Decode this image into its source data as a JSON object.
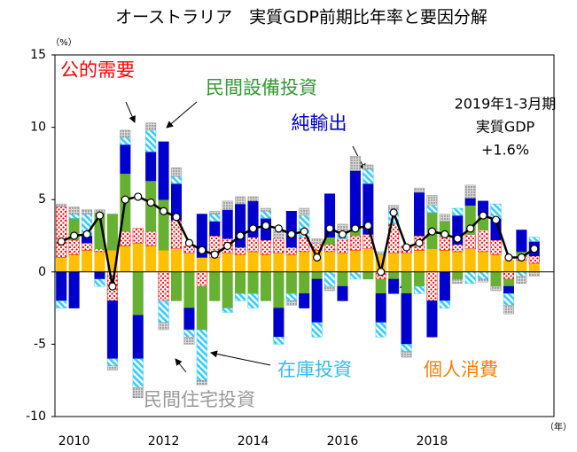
{
  "chart_data": {
    "type": "stacked-bar-line",
    "title": "オーストラリア　実質GDP前期比年率と要因分解",
    "y_unit": "（%）",
    "x_unit": "（年）",
    "categories": [
      null,
      "2010",
      null,
      null,
      null,
      null,
      null,
      null,
      "2012",
      null,
      null,
      null,
      null,
      null,
      null,
      "2014",
      null,
      null,
      null,
      null,
      null,
      null,
      "2016",
      null,
      null,
      null,
      null,
      null,
      null,
      "2018",
      null,
      null,
      null,
      null,
      null,
      null,
      null,
      null
    ],
    "ylim": [
      -10,
      15
    ],
    "yticks": [
      -10,
      -5,
      0,
      5,
      10,
      15
    ],
    "series": [
      {
        "name": "個人消費",
        "color": "#ffc000",
        "values": [
          1.0,
          1.2,
          1.5,
          1.4,
          1.5,
          1.8,
          2.0,
          1.8,
          1.5,
          1.6,
          1.3,
          1.0,
          1.0,
          1.3,
          1.2,
          1.4,
          1.2,
          1.3,
          1.2,
          1.4,
          1.5,
          1.4,
          1.3,
          1.5,
          1.6,
          1.2,
          1.3,
          1.3,
          1.5,
          1.6,
          1.5,
          1.4,
          1.6,
          1.4,
          1.2,
          0.8,
          0.8,
          0.6
        ]
      },
      {
        "name": "公的需要",
        "color": "#ff0000",
        "values": [
          3.5,
          1.0,
          0.5,
          0.2,
          -2.0,
          1.0,
          1.0,
          1.0,
          -2.0,
          2.0,
          0.5,
          -1.0,
          1.5,
          1.0,
          0.5,
          1.0,
          1.0,
          1.0,
          0.5,
          1.0,
          0.5,
          0.5,
          1.0,
          1.0,
          1.0,
          -0.5,
          2.0,
          0.5,
          1.0,
          -2.0,
          1.0,
          0.5,
          1.0,
          1.5,
          1.0,
          -0.5,
          0.3,
          0.5
        ]
      },
      {
        "name": "民間設備投資",
        "color": "#66b032",
        "values": [
          0,
          1.5,
          0,
          2.5,
          2.5,
          4.0,
          -3.0,
          3.5,
          3.5,
          -2.0,
          -2.5,
          -3.0,
          -2.0,
          -2.5,
          -1.5,
          -1.5,
          -2.0,
          -2.5,
          -1.5,
          -1.5,
          -0.5,
          0.5,
          -1.0,
          0.5,
          -0.5,
          -1.0,
          -0.5,
          -1.5,
          -1.0,
          2.5,
          1.0,
          -0.5,
          2.0,
          1.0,
          -1.0,
          -0.5,
          0.3,
          0
        ]
      },
      {
        "name": "純輸出",
        "color": "#0000cc",
        "values": [
          -2.0,
          -2.5,
          0.5,
          -0.5,
          -4.0,
          2.0,
          -3.0,
          2.0,
          4.0,
          2.5,
          -1.5,
          3.0,
          1.0,
          2.0,
          3.0,
          2.5,
          1.5,
          -2.0,
          2.5,
          -1.0,
          -3.0,
          3.0,
          -1.0,
          4.0,
          3.5,
          -2.0,
          -1.0,
          -3.5,
          3.0,
          -2.5,
          -2.0,
          2.0,
          0.5,
          1.0,
          1.5,
          -0.5,
          1.5,
          1.0
        ]
      },
      {
        "name": "在庫投資",
        "color": "#33ccff",
        "values": [
          -0.5,
          0.3,
          1.5,
          -0.5,
          -0.5,
          0.5,
          -2.0,
          1.5,
          -1.5,
          0.5,
          -0.5,
          -3.5,
          0.5,
          -0.3,
          -0.5,
          -1.0,
          0.5,
          -0.5,
          -0.5,
          1.5,
          -1.0,
          -1.0,
          0.5,
          -0.5,
          1.0,
          -1.0,
          1.0,
          -0.5,
          -0.5,
          0.5,
          -0.5,
          0.5,
          -0.8,
          -0.5,
          1.0,
          -0.8,
          -0.3,
          0.3
        ]
      },
      {
        "name": "民間住宅投資",
        "color": "#999999",
        "values": [
          0.2,
          0.5,
          0.3,
          0.2,
          -0.3,
          0.5,
          -0.7,
          0.5,
          -0.5,
          0.6,
          -0.5,
          -0.3,
          0.2,
          0.6,
          0.5,
          0.3,
          0.2,
          0.6,
          -0.3,
          0.5,
          0.3,
          -0.3,
          0.5,
          1.0,
          0.3,
          0.2,
          0.3,
          -0.4,
          0.3,
          0.7,
          0.5,
          -0.3,
          0.9,
          -0.2,
          -0.3,
          -0.6,
          -0.5,
          -0.3
        ]
      }
    ],
    "line": {
      "color": "#000000",
      "values": [
        2.1,
        2.5,
        2.6,
        3.9,
        -1.0,
        5.0,
        5.2,
        4.8,
        4.2,
        3.8,
        2.0,
        1.5,
        1.2,
        1.8,
        2.5,
        3.0,
        3.2,
        3.0,
        2.6,
        2.8,
        1.0,
        3.0,
        2.6,
        3.0,
        3.2,
        0.0,
        4.1,
        1.7,
        2.0,
        2.8,
        2.6,
        2.3,
        3.0,
        3.9,
        3.6,
        1.0,
        1.0,
        1.6
      ]
    },
    "note": [
      "2019年1-3月期",
      "実質GDP",
      "+1.6%"
    ]
  }
}
